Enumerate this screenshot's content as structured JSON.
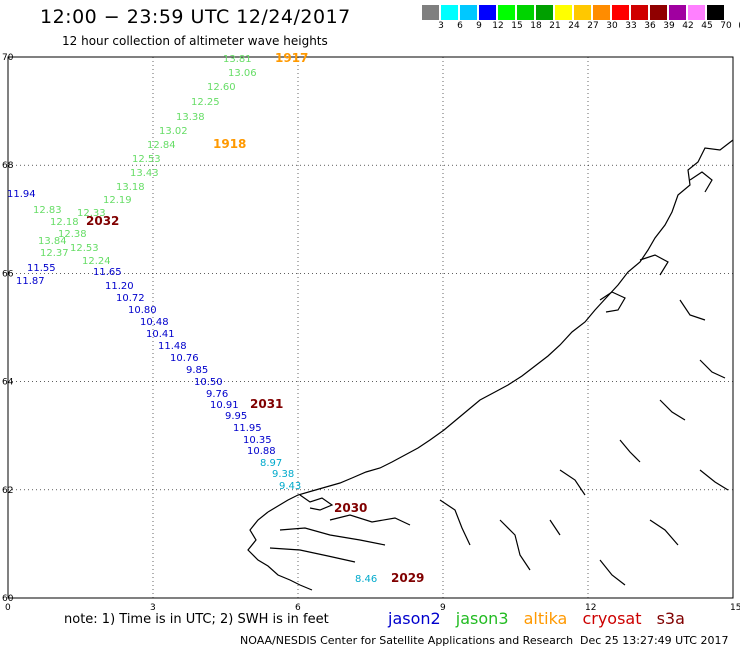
{
  "title": "12:00 − 23:59 UTC 12/24/2017",
  "subtitle": "12 hour collection of altimeter wave heights",
  "legend": {
    "colors": [
      "#7f7f7f",
      "#00ffff",
      "#00c8ff",
      "#0000ff",
      "#00ff00",
      "#00d400",
      "#00a000",
      "#ffff00",
      "#ffc800",
      "#ff8c00",
      "#ff0000",
      "#d00000",
      "#900000",
      "#a000a0",
      "#ff80ff",
      "#000000"
    ],
    "labels": [
      "3",
      "6",
      "9",
      "12",
      "15",
      "18",
      "21",
      "24",
      "27",
      "30",
      "33",
      "36",
      "39",
      "42",
      "45",
      "70",
      "(ft)"
    ]
  },
  "axes": {
    "lon_ticks": [
      "0",
      "3",
      "6",
      "9",
      "12",
      "15"
    ],
    "lat_ticks": [
      "70",
      "68",
      "66",
      "64",
      "62",
      "60"
    ]
  },
  "satellite_colors": {
    "jason2": "#0000cc",
    "jason3": "#22bb22",
    "altika": "#ff9900",
    "cryosat": "#cc0000",
    "s3a": "#800000",
    "wave_jason3": "#66dd66",
    "wave_cyan": "#00aacc"
  },
  "tracks": [
    {
      "sat": "jason3",
      "labels": [
        "13.81",
        "13.06",
        "12.60",
        "12.25",
        "13.38",
        "13.02",
        "12.84",
        "12.53",
        "13.43",
        "13.18",
        "12.19",
        "12.83",
        "12.33",
        "12.18",
        "12.38",
        "13.84",
        "12.53",
        "12.37",
        "12.24"
      ]
    },
    {
      "sat": "jason2",
      "labels": [
        "11.94",
        "11.55",
        "11.87",
        "11.65",
        "11.20",
        "10.72",
        "10.80",
        "10.48",
        "10.41",
        "11.48",
        "10.76",
        "9.85",
        "10.50",
        "9.76",
        "10.91",
        "9.95",
        "11.95",
        "10.35",
        "10.88"
      ]
    },
    {
      "sat": "cyan",
      "labels": [
        "8.97",
        "9.38",
        "9.43",
        "8.46"
      ]
    }
  ],
  "time_labels": [
    {
      "text": "1917",
      "color": "orange"
    },
    {
      "text": "1918",
      "color": "orange"
    },
    {
      "text": "2032",
      "color": "darkred"
    },
    {
      "text": "2031",
      "color": "darkred"
    },
    {
      "text": "2030",
      "color": "darkred"
    },
    {
      "text": "2029",
      "color": "darkred"
    }
  ],
  "note": "note: 1) Time is in UTC; 2) SWH is in feet",
  "satellites": [
    "jason2",
    "jason3",
    "altika",
    "cryosat",
    "s3a"
  ],
  "credit": "NOAA/NESDIS Center for Satellite Applications and Research",
  "timestamp": "Dec 25 13:27:49 UTC 2017"
}
